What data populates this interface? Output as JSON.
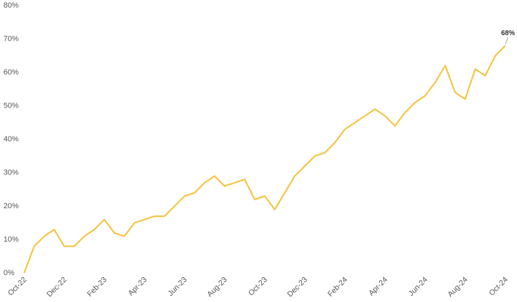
{
  "chart_data": {
    "type": "line",
    "categories": [
      "Oct-22",
      null,
      null,
      null,
      "Dec-22",
      null,
      null,
      null,
      "Feb-23",
      null,
      null,
      null,
      "Apr-23",
      null,
      null,
      null,
      "Jun-23",
      null,
      null,
      null,
      "Aug-23",
      null,
      null,
      null,
      "Oct-23",
      null,
      null,
      null,
      "Dec-23",
      null,
      null,
      null,
      "Feb-24",
      null,
      null,
      null,
      "Apr-24",
      null,
      null,
      null,
      "Jun-24",
      null,
      null,
      null,
      "Aug-24",
      null,
      null,
      null,
      "Oct-24"
    ],
    "series": [
      {
        "color": "#f6c343",
        "values": [
          0,
          8,
          11,
          13,
          8,
          8,
          11,
          13,
          16,
          12,
          11,
          15,
          16,
          17,
          17,
          20,
          23,
          24,
          27,
          29,
          26,
          27,
          28,
          22,
          23,
          19,
          24,
          29,
          32,
          35,
          36,
          39,
          43,
          45,
          47,
          49,
          47,
          44,
          48,
          51,
          53,
          57,
          62,
          54,
          52,
          61,
          59,
          65,
          68
        ],
        "value_labels": [
          null,
          null,
          null,
          null,
          null,
          null,
          null,
          null,
          null,
          null,
          null,
          null,
          null,
          null,
          null,
          null,
          null,
          null,
          null,
          null,
          null,
          null,
          null,
          null,
          null,
          null,
          null,
          null,
          null,
          null,
          null,
          null,
          null,
          null,
          null,
          null,
          null,
          null,
          null,
          null,
          null,
          null,
          null,
          null,
          null,
          null,
          null,
          null,
          "68%"
        ]
      }
    ],
    "ylim": [
      0,
      80
    ],
    "yticks": [
      {
        "value": 0,
        "label": "0%"
      },
      {
        "value": 10,
        "label": "10%"
      },
      {
        "value": 20,
        "label": "20%"
      },
      {
        "value": 30,
        "label": "30%"
      },
      {
        "value": 40,
        "label": "40%"
      },
      {
        "value": 50,
        "label": "50%"
      },
      {
        "value": 60,
        "label": "60%"
      },
      {
        "value": 70,
        "label": "70%"
      },
      {
        "value": 80,
        "label": "80%"
      }
    ],
    "grid": false
  }
}
